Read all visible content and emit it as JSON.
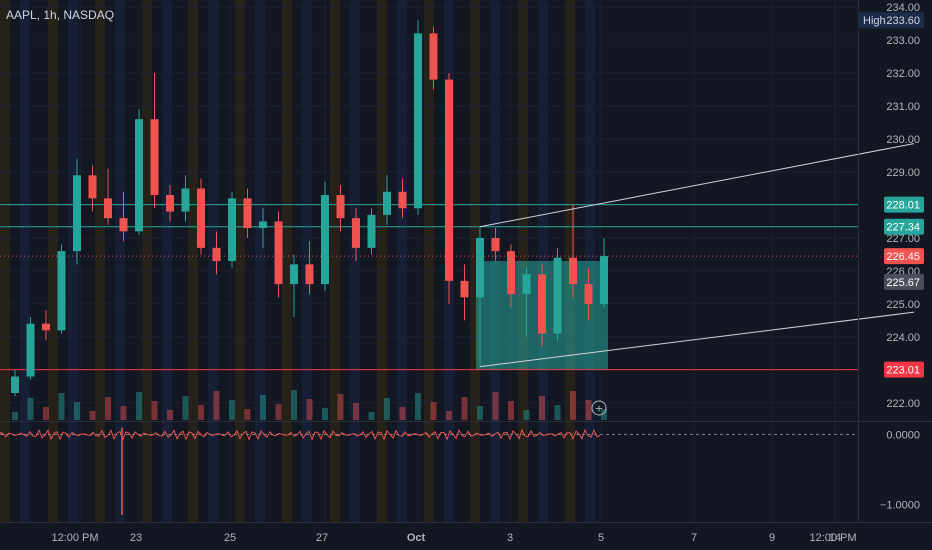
{
  "header": {
    "symbol_line": "AAPL, 1h, NASDAQ"
  },
  "colors": {
    "background": "#131722",
    "up": "#26a69a",
    "down": "#ef5350",
    "grid": "#1e222d",
    "session_pre": "#2a2519",
    "session_post": "#19213b",
    "level_line": "#26a69a",
    "support_line": "#f23645",
    "trend_line": "#d1d4dc",
    "box_fill": "#26a69a",
    "axis_text": "#b2b5be"
  },
  "chart_data": {
    "type": "candlestick",
    "title": "",
    "ylim": [
      221.3,
      234.0
    ],
    "y_ticks": [
      "234.00",
      "233.00",
      "232.00",
      "231.00",
      "230.00",
      "229.00",
      "228.00",
      "227.00",
      "226.00",
      "225.00",
      "224.00",
      "223.00",
      "222.00"
    ],
    "x_ticks": [
      "12:00 PM",
      "23",
      "25",
      "27",
      "Oct",
      "3",
      "5",
      "7",
      "9",
      "12:00 PM",
      "14"
    ],
    "price_labels": [
      {
        "label": "High",
        "value": "233.60",
        "price": 233.6,
        "style": "high"
      },
      {
        "value": "228.01",
        "price": 228.01,
        "style": "level"
      },
      {
        "value": "227.34",
        "price": 227.34,
        "style": "level"
      },
      {
        "value": "226.45",
        "price": 226.45,
        "style": "current"
      },
      {
        "value": "225.67",
        "price": 225.67,
        "style": "gray"
      },
      {
        "value": "223.01",
        "price": 223.01,
        "style": "support"
      }
    ],
    "horizontal_lines": [
      {
        "price": 228.01,
        "type": "level"
      },
      {
        "price": 227.34,
        "type": "level"
      },
      {
        "price": 223.01,
        "type": "support"
      },
      {
        "price": 226.45,
        "type": "current"
      }
    ],
    "trend_channel": {
      "upper": [
        [
          30,
          227.34
        ],
        [
          58,
          229.86
        ]
      ],
      "lower": [
        [
          30,
          223.1
        ],
        [
          58,
          224.75
        ]
      ]
    },
    "range_box": {
      "x_start": 30,
      "x_end": 38,
      "top": 226.3,
      "bottom": 223.01
    },
    "candles": [
      [
        0,
        222.3,
        223.0,
        222.2,
        222.8
      ],
      [
        1,
        222.8,
        224.6,
        222.7,
        224.4
      ],
      [
        2,
        224.4,
        224.8,
        223.9,
        224.2
      ],
      [
        3,
        224.2,
        226.8,
        224.1,
        226.6
      ],
      [
        4,
        226.6,
        229.4,
        226.2,
        228.9
      ],
      [
        5,
        228.9,
        229.2,
        227.8,
        228.2
      ],
      [
        6,
        228.2,
        229.1,
        227.4,
        227.6
      ],
      [
        7,
        227.6,
        228.4,
        226.9,
        227.2
      ],
      [
        8,
        227.2,
        230.9,
        227.1,
        230.6
      ],
      [
        9,
        230.6,
        232.0,
        227.9,
        228.3
      ],
      [
        10,
        228.3,
        228.6,
        227.5,
        227.8
      ],
      [
        11,
        227.8,
        228.9,
        227.5,
        228.5
      ],
      [
        12,
        228.5,
        228.8,
        226.5,
        226.7
      ],
      [
        13,
        226.7,
        227.2,
        225.9,
        226.3
      ],
      [
        14,
        226.3,
        228.4,
        226.1,
        228.2
      ],
      [
        15,
        228.2,
        228.5,
        227.0,
        227.3
      ],
      [
        16,
        227.3,
        227.9,
        226.7,
        227.5
      ],
      [
        17,
        227.5,
        227.8,
        225.2,
        225.6
      ],
      [
        18,
        225.6,
        226.5,
        224.6,
        226.2
      ],
      [
        19,
        226.2,
        226.9,
        225.3,
        225.6
      ],
      [
        20,
        225.6,
        228.7,
        225.4,
        228.3
      ],
      [
        21,
        228.3,
        228.6,
        227.2,
        227.6
      ],
      [
        22,
        227.6,
        227.9,
        226.3,
        226.7
      ],
      [
        23,
        226.7,
        227.9,
        226.5,
        227.7
      ],
      [
        24,
        227.7,
        228.9,
        227.4,
        228.4
      ],
      [
        25,
        228.4,
        228.8,
        227.6,
        227.9
      ],
      [
        26,
        227.9,
        233.6,
        227.7,
        233.2
      ],
      [
        27,
        233.2,
        233.4,
        231.5,
        231.8
      ],
      [
        28,
        231.8,
        232.0,
        225.0,
        225.7
      ],
      [
        29,
        225.7,
        226.2,
        224.5,
        225.2
      ],
      [
        30,
        225.2,
        227.3,
        223.1,
        227.0
      ],
      [
        31,
        227.0,
        227.3,
        226.3,
        226.6
      ],
      [
        32,
        226.6,
        226.8,
        224.9,
        225.3
      ],
      [
        33,
        225.3,
        226.1,
        224.0,
        225.9
      ],
      [
        34,
        225.9,
        226.2,
        223.7,
        224.1
      ],
      [
        35,
        224.1,
        226.7,
        223.9,
        226.4
      ],
      [
        36,
        226.4,
        228.01,
        225.2,
        225.6
      ],
      [
        37,
        225.6,
        226.1,
        224.5,
        225.0
      ],
      [
        38,
        225.0,
        227.0,
        224.9,
        226.45
      ]
    ],
    "oscillator": {
      "ylim": [
        -1.25,
        0.15
      ],
      "ticks": [
        "0.0000",
        "−1.0000"
      ]
    }
  }
}
